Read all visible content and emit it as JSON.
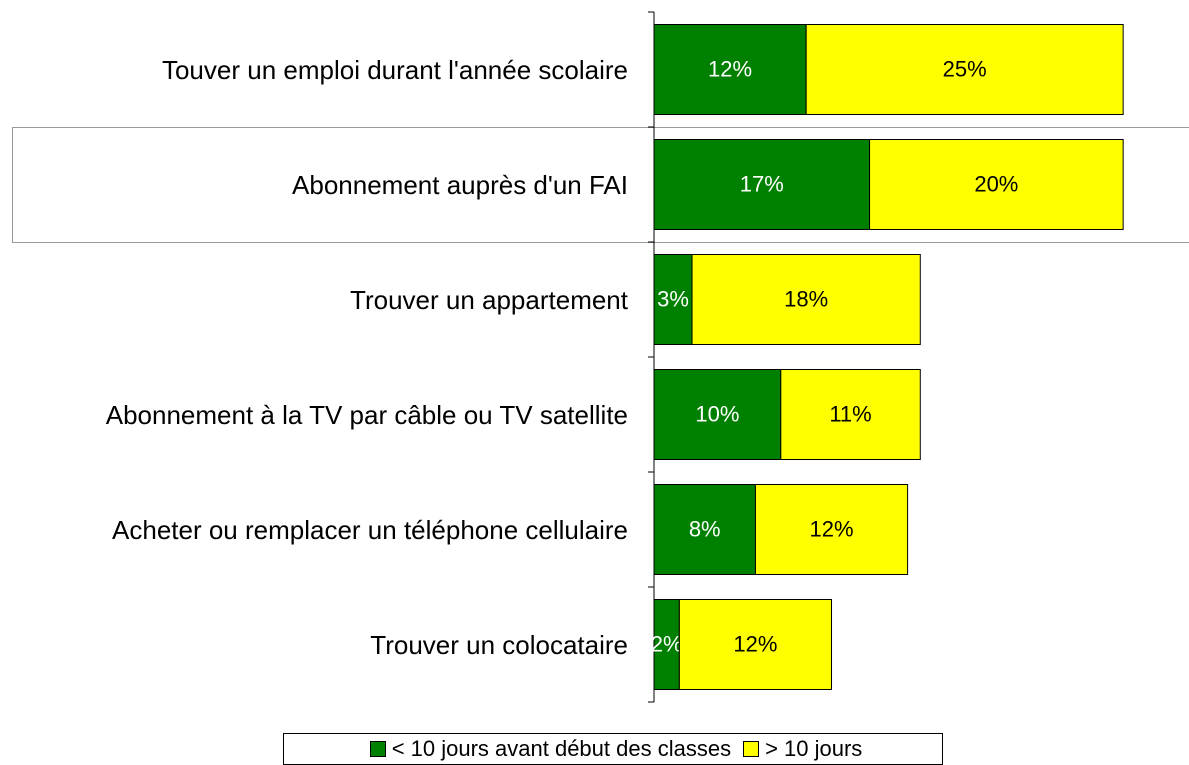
{
  "chart_data": {
    "type": "stacked-bar-horizontal",
    "categories": [
      "Touver un emploi durant l'année scolaire",
      "Abonnement auprès d'un FAI",
      "Trouver un appartement",
      "Abonnement à la TV par câble ou TV satellite",
      "Acheter ou remplacer un téléphone cellulaire",
      "Trouver un colocataire"
    ],
    "series": [
      {
        "name": "< 10 jours avant début des classes",
        "color": "#008000",
        "values": [
          12,
          17,
          3,
          10,
          8,
          2
        ],
        "value_labels": [
          "12%",
          "17%",
          "3%",
          "10%",
          "8%",
          "2%"
        ]
      },
      {
        "name": "> 10 jours",
        "color": "#ffff00",
        "values": [
          25,
          20,
          18,
          11,
          12,
          12
        ],
        "value_labels": [
          "25%",
          "20%",
          "18%",
          "11%",
          "12%",
          "12%"
        ]
      }
    ]
  }
}
